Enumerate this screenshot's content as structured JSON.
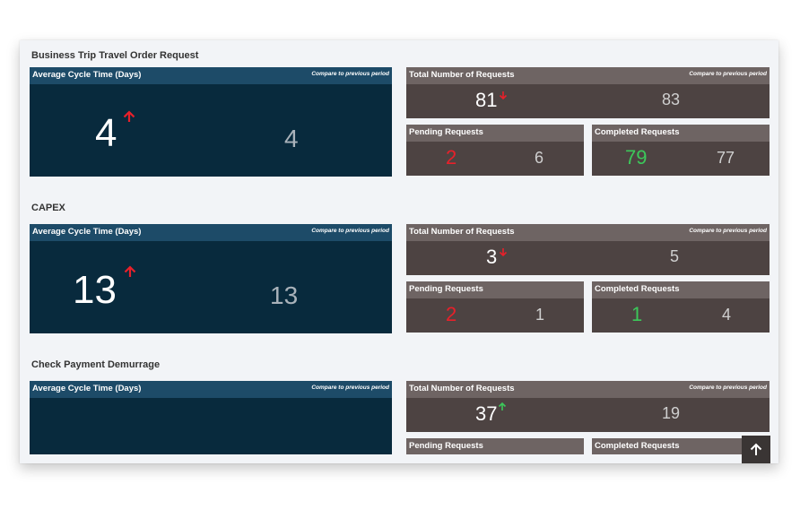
{
  "compare_label": "Compare to previous period",
  "sections": [
    {
      "title": "Business Trip Travel Order Request",
      "cycle": {
        "label": "Average Cycle Time (Days)",
        "current": "4",
        "previous": "4",
        "trend": "up"
      },
      "total": {
        "label": "Total Number of Requests",
        "current": "81",
        "previous": "83",
        "trend": "down"
      },
      "pending": {
        "label": "Pending Requests",
        "current": "2",
        "previous": "6"
      },
      "completed": {
        "label": "Completed Requests",
        "current": "79",
        "previous": "77"
      }
    },
    {
      "title": "CAPEX",
      "cycle": {
        "label": "Average Cycle Time (Days)",
        "current": "13",
        "previous": "13",
        "trend": "up"
      },
      "total": {
        "label": "Total Number of Requests",
        "current": "3",
        "previous": "5",
        "trend": "down"
      },
      "pending": {
        "label": "Pending Requests",
        "current": "2",
        "previous": "1"
      },
      "completed": {
        "label": "Completed Requests",
        "current": "1",
        "previous": "4"
      }
    },
    {
      "title": "Check Payment Demurrage",
      "cycle": {
        "label": "Average Cycle Time (Days)",
        "current": "",
        "previous": ""
      },
      "total": {
        "label": "Total Number of Requests",
        "current": "37",
        "previous": "19",
        "trend": "up"
      },
      "pending": {
        "label": "Pending Requests"
      },
      "completed": {
        "label": "Completed Requests"
      }
    }
  ],
  "colors": {
    "down_red": "#e8202a",
    "up_green": "#3cc85a",
    "cycle_bg": "#082a3d",
    "cycle_header": "#1d4b68",
    "tile_bg": "#4d4342",
    "tile_header": "#6e6463"
  },
  "icons": {
    "trend_up": "arrow-up-icon",
    "trend_down": "arrow-down-icon",
    "scroll_top": "arrow-up-icon"
  }
}
